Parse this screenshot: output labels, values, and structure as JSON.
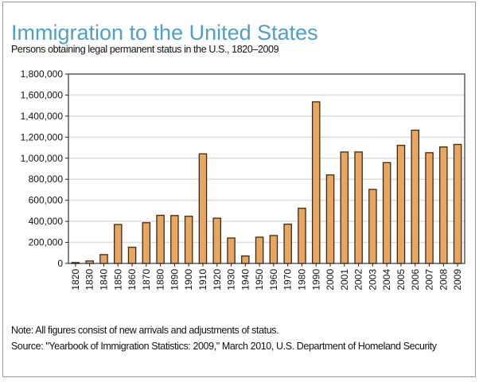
{
  "chart_data": {
    "type": "bar",
    "title": "Immigration to the United States",
    "subtitle": "Persons obtaining legal permanent status in the U.S., 1820–2009",
    "xlabel": "",
    "ylabel": "",
    "ylim": [
      0,
      1800000
    ],
    "yticks": [
      0,
      200000,
      400000,
      600000,
      800000,
      1000000,
      1200000,
      1400000,
      1600000,
      1800000
    ],
    "ytick_labels": [
      "0",
      "200,000",
      "400,000",
      "600,000",
      "800,000",
      "1,000,000",
      "1,200,000",
      "1,400,000",
      "1,600,000",
      "1,800,000"
    ],
    "grid": "horizontal",
    "bar_color": "#e8a760",
    "bar_edge_color": "#3b2a1c",
    "categories": [
      "1820",
      "1830",
      "1840",
      "1850",
      "1860",
      "1870",
      "1880",
      "1890",
      "1900",
      "1910",
      "1920",
      "1930",
      "1940",
      "1950",
      "1960",
      "1970",
      "1980",
      "1990",
      "2000",
      "2001",
      "2002",
      "2003",
      "2004",
      "2005",
      "2006",
      "2007",
      "2008",
      "2009"
    ],
    "values": [
      8385,
      23322,
      84066,
      369980,
      153640,
      387203,
      457257,
      455302,
      448572,
      1041570,
      430001,
      241700,
      70756,
      249187,
      265398,
      373326,
      524295,
      1535872,
      841002,
      1058902,
      1059356,
      703542,
      957883,
      1122257,
      1266129,
      1052415,
      1107126,
      1130818
    ]
  },
  "note": "Note: All figures consist of new arrivals and adjustments of status.",
  "source": "Source: \"Yearbook of Immigration Statistics: 2009,\" March 2010, U.S. Department of Homeland Security",
  "title_color": "#4fa0c6"
}
